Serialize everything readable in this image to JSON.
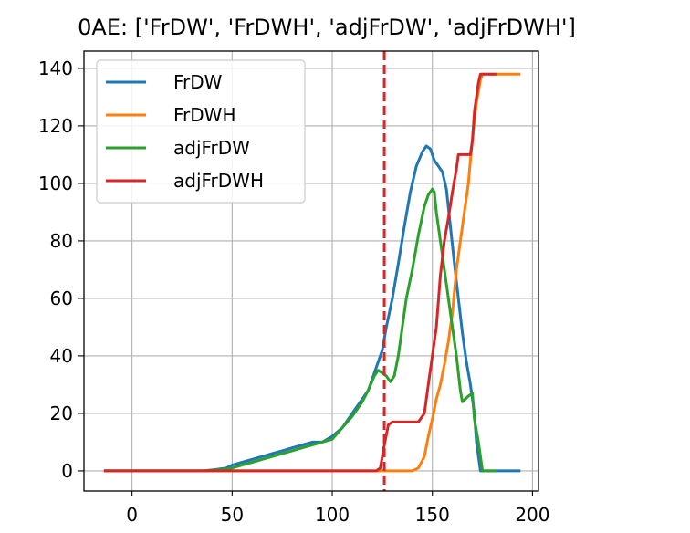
{
  "chart_data": {
    "type": "line",
    "title": "0AE: ['FrDW', 'FrDWH', 'adjFrDW', 'adjFrDWH']",
    "xlim": [
      -24,
      203
    ],
    "ylim": [
      -7,
      146
    ],
    "xticks": [
      0,
      50,
      100,
      150,
      200
    ],
    "yticks": [
      0,
      20,
      40,
      60,
      80,
      100,
      120,
      140
    ],
    "grid": true,
    "legend_position": "upper left",
    "vline": {
      "x": 126,
      "color": "#d62728",
      "style": "dashed"
    },
    "series": [
      {
        "name": "FrDW",
        "color": "#1f77b4",
        "points": [
          [
            -14,
            0
          ],
          [
            36,
            0
          ],
          [
            42,
            0.5
          ],
          [
            47,
            1
          ],
          [
            50,
            2
          ],
          [
            55,
            3
          ],
          [
            60,
            4
          ],
          [
            65,
            5
          ],
          [
            70,
            6
          ],
          [
            75,
            7
          ],
          [
            80,
            8
          ],
          [
            85,
            9
          ],
          [
            90,
            10
          ],
          [
            95,
            10
          ],
          [
            100,
            12
          ],
          [
            105,
            15
          ],
          [
            110,
            20
          ],
          [
            115,
            25
          ],
          [
            118,
            28
          ],
          [
            120,
            32
          ],
          [
            123,
            38
          ],
          [
            125,
            42
          ],
          [
            127,
            50
          ],
          [
            130,
            60
          ],
          [
            133,
            72
          ],
          [
            136,
            85
          ],
          [
            139,
            97
          ],
          [
            142,
            106
          ],
          [
            145,
            111
          ],
          [
            147,
            113
          ],
          [
            149,
            112
          ],
          [
            151,
            108
          ],
          [
            153,
            106
          ],
          [
            155,
            104
          ],
          [
            157,
            98
          ],
          [
            159,
            85
          ],
          [
            161,
            72
          ],
          [
            163,
            60
          ],
          [
            165,
            48
          ],
          [
            167,
            38
          ],
          [
            169,
            30
          ],
          [
            171,
            20
          ],
          [
            172,
            10
          ],
          [
            174,
            0
          ],
          [
            178,
            0
          ],
          [
            194,
            0
          ]
        ]
      },
      {
        "name": "FrDWH",
        "color": "#ff7f0e",
        "points": [
          [
            -14,
            0
          ],
          [
            140,
            0
          ],
          [
            143,
            1
          ],
          [
            146,
            5
          ],
          [
            148,
            12
          ],
          [
            150,
            18
          ],
          [
            152,
            25
          ],
          [
            154,
            30
          ],
          [
            156,
            37
          ],
          [
            158,
            45
          ],
          [
            160,
            55
          ],
          [
            162,
            70
          ],
          [
            164,
            80
          ],
          [
            166,
            90
          ],
          [
            168,
            100
          ],
          [
            169,
            108
          ],
          [
            170,
            115
          ],
          [
            171,
            122
          ],
          [
            172,
            128
          ],
          [
            173,
            132
          ],
          [
            174,
            136
          ],
          [
            175,
            138
          ],
          [
            180,
            138
          ],
          [
            194,
            138
          ]
        ]
      },
      {
        "name": "adjFrDW",
        "color": "#2ca02c",
        "points": [
          [
            -14,
            0
          ],
          [
            36,
            0
          ],
          [
            45,
            0.5
          ],
          [
            50,
            1
          ],
          [
            55,
            2
          ],
          [
            60,
            3
          ],
          [
            65,
            4
          ],
          [
            70,
            5
          ],
          [
            75,
            6
          ],
          [
            80,
            7
          ],
          [
            85,
            8
          ],
          [
            90,
            9
          ],
          [
            95,
            10
          ],
          [
            100,
            11
          ],
          [
            105,
            15
          ],
          [
            110,
            19
          ],
          [
            115,
            24
          ],
          [
            118,
            28
          ],
          [
            121,
            33
          ],
          [
            123,
            35
          ],
          [
            125,
            34
          ],
          [
            127,
            33
          ],
          [
            129,
            31
          ],
          [
            131,
            33
          ],
          [
            133,
            40
          ],
          [
            135,
            50
          ],
          [
            137,
            60
          ],
          [
            140,
            70
          ],
          [
            143,
            82
          ],
          [
            146,
            92
          ],
          [
            148,
            96
          ],
          [
            150,
            98
          ],
          [
            151,
            97
          ],
          [
            152,
            90
          ],
          [
            154,
            80
          ],
          [
            156,
            70
          ],
          [
            158,
            60
          ],
          [
            160,
            50
          ],
          [
            162,
            40
          ],
          [
            164,
            28
          ],
          [
            165,
            24
          ],
          [
            168,
            26
          ],
          [
            170,
            27
          ],
          [
            171,
            18
          ],
          [
            173,
            10
          ],
          [
            175,
            0
          ],
          [
            182,
            0
          ]
        ]
      },
      {
        "name": "adjFrDWH",
        "color": "#d62728",
        "points": [
          [
            -14,
            0
          ],
          [
            122,
            0
          ],
          [
            124,
            1
          ],
          [
            125,
            5
          ],
          [
            126,
            9
          ],
          [
            128,
            16
          ],
          [
            130,
            17
          ],
          [
            143,
            17
          ],
          [
            146,
            20
          ],
          [
            148,
            30
          ],
          [
            150,
            40
          ],
          [
            152,
            50
          ],
          [
            154,
            68
          ],
          [
            156,
            80
          ],
          [
            158,
            88
          ],
          [
            160,
            97
          ],
          [
            162,
            105
          ],
          [
            163,
            110
          ],
          [
            169,
            110
          ],
          [
            170,
            115
          ],
          [
            171,
            125
          ],
          [
            172,
            130
          ],
          [
            173,
            135
          ],
          [
            174,
            138
          ],
          [
            182,
            138
          ]
        ]
      }
    ]
  }
}
